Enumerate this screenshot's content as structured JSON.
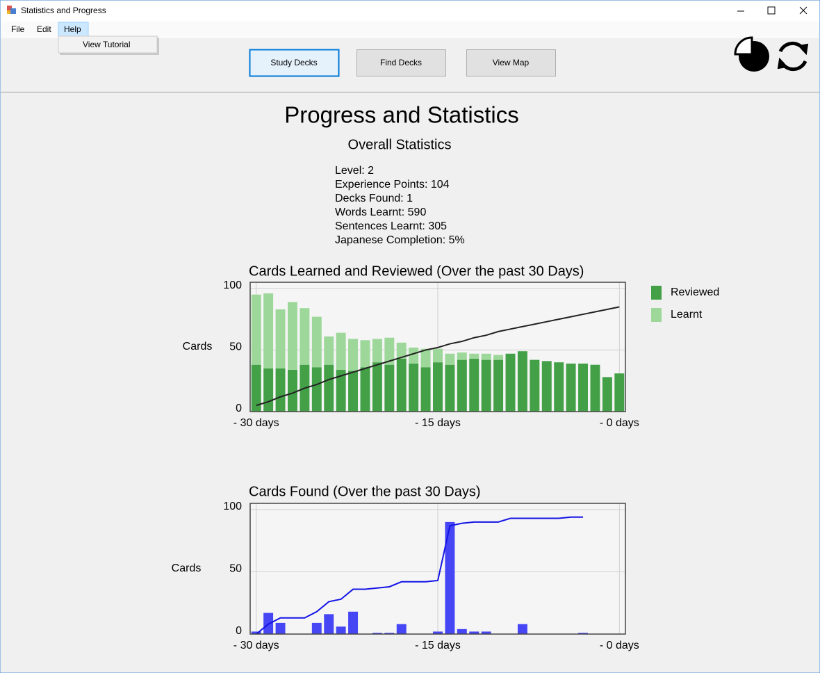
{
  "window": {
    "title": "Statistics and Progress"
  },
  "menu": [
    "File",
    "Edit",
    "Help"
  ],
  "dropdown": [
    "View Tutorial"
  ],
  "toolbar": [
    "Study Decks",
    "Find Decks",
    "View Map"
  ],
  "heading": "Progress and Statistics",
  "subheading": "Overall Statistics",
  "stats": [
    "Level: 2",
    "Experience Points: 104",
    "Decks Found: 1",
    "Words Learnt: 590",
    "Sentences Learnt: 305",
    "Japanese Completion: 5%"
  ],
  "chart_data": [
    {
      "type": "bar",
      "stacked": true,
      "title": "Cards Learned and Reviewed (Over the past 30 Days)",
      "ylabel": "Cards",
      "x": [
        -30,
        -29,
        -28,
        -27,
        -26,
        -25,
        -24,
        -23,
        -22,
        -21,
        -20,
        -19,
        -18,
        -17,
        -16,
        -15,
        -14,
        -13,
        -12,
        -11,
        -10,
        -9,
        -8,
        -7,
        -6,
        -5,
        -4,
        -3,
        -2,
        -1,
        0
      ],
      "xlim": [
        -30.5,
        0.5
      ],
      "xticks": [
        {
          "value": -30,
          "label": "- 30 days"
        },
        {
          "value": -15,
          "label": "- 15 days"
        },
        {
          "value": 0,
          "label": "- 0 days"
        }
      ],
      "ylim": [
        0,
        105
      ],
      "yticks": [
        0,
        50,
        100
      ],
      "grid": true,
      "legend": "right",
      "series": [
        {
          "name": "Reviewed",
          "color": "#43a047",
          "values": [
            38,
            35,
            35,
            34,
            38,
            36,
            38,
            34,
            33,
            36,
            40,
            38,
            43,
            39,
            36,
            40,
            38,
            42,
            43,
            42,
            42,
            47,
            49,
            42,
            41,
            40,
            39,
            39,
            38,
            28,
            31
          ]
        },
        {
          "name": "Learnt",
          "color": "#9dd89a",
          "values": [
            57,
            61,
            48,
            55,
            46,
            41,
            23,
            30,
            26,
            22,
            19,
            22,
            13,
            13,
            15,
            11,
            9,
            6,
            4,
            5,
            4,
            0,
            0,
            0,
            0,
            0,
            0,
            0,
            0,
            0,
            0
          ]
        },
        {
          "type": "line",
          "color": "#222222",
          "values": [
            5,
            8,
            12,
            15,
            19,
            22,
            26,
            29,
            32,
            35,
            38,
            41,
            44,
            47,
            50,
            52,
            55,
            57,
            60,
            62,
            65,
            67,
            69,
            71,
            73,
            75,
            77,
            79,
            81,
            83,
            85
          ]
        }
      ]
    },
    {
      "type": "bar",
      "title": "Cards Found (Over the past 30 Days)",
      "ylabel": "Cards",
      "x": [
        -30,
        -29,
        -28,
        -27,
        -26,
        -25,
        -24,
        -23,
        -22,
        -21,
        -20,
        -19,
        -18,
        -17,
        -16,
        -15,
        -14,
        -13,
        -12,
        -11,
        -10,
        -9,
        -8,
        -7,
        -6,
        -5,
        -4,
        -3,
        -2,
        -1,
        0
      ],
      "xlim": [
        -30.5,
        0.5
      ],
      "xticks": [
        {
          "value": -30,
          "label": "- 30 days"
        },
        {
          "value": -15,
          "label": "- 15 days"
        },
        {
          "value": 0,
          "label": "- 0 days"
        }
      ],
      "ylim": [
        0,
        105
      ],
      "yticks": [
        0,
        50,
        100
      ],
      "grid": true,
      "series": [
        {
          "color": "#4646f5",
          "values": [
            2,
            17,
            9,
            0,
            0,
            9,
            16,
            6,
            18,
            0,
            1,
            1,
            8,
            0,
            0,
            2,
            90,
            4,
            2,
            2,
            0,
            0,
            8,
            0,
            0,
            0,
            0,
            1,
            0,
            0,
            0
          ]
        },
        {
          "type": "line",
          "color": "#1414e6",
          "values": [
            0,
            8,
            13,
            13,
            13,
            18,
            26,
            28,
            36,
            36,
            37,
            38,
            42,
            42,
            42,
            43,
            87,
            89,
            90,
            90,
            90,
            93,
            93,
            93,
            93,
            93,
            94,
            94,
            null,
            null,
            null
          ]
        }
      ]
    }
  ]
}
